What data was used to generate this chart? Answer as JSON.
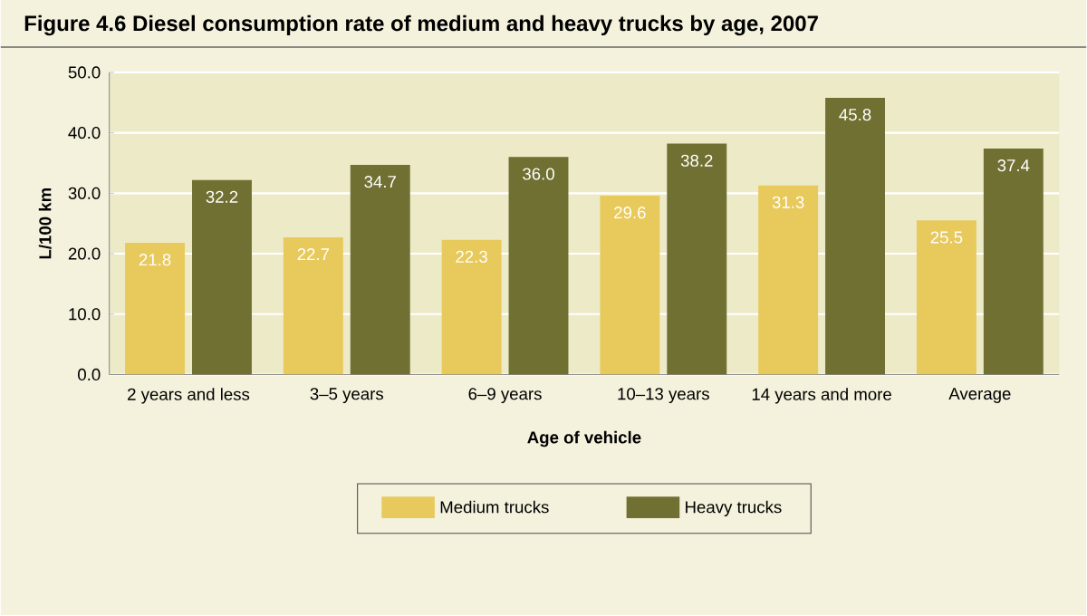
{
  "chart_data": {
    "type": "bar",
    "title": "Figure 4.6  Diesel consumption rate of medium and heavy trucks by age, 2007",
    "xlabel": "Age of vehicle",
    "ylabel": "L/100 km",
    "categories": [
      "2 years and less",
      "3–5 years",
      "6–9 years",
      "10–13 years",
      "14 years and more",
      "Average"
    ],
    "series": [
      {
        "name": "Medium trucks",
        "color": "#e8c95c",
        "values": [
          21.8,
          22.7,
          22.3,
          29.6,
          31.3,
          25.5
        ],
        "value_labels": [
          "21.8",
          "22.7",
          "22.3",
          "29.6",
          "31.3",
          "25.5"
        ]
      },
      {
        "name": "Heavy trucks",
        "color": "#6f7031",
        "values": [
          32.2,
          34.7,
          36.0,
          38.2,
          45.8,
          37.4
        ],
        "value_labels": [
          "32.2",
          "34.7",
          "36.0",
          "38.2",
          "45.8",
          "37.4"
        ]
      }
    ],
    "ylim": [
      0,
      50
    ],
    "yticks": [
      {
        "value": 0,
        "label": "0.0"
      },
      {
        "value": 10,
        "label": "10.0"
      },
      {
        "value": 20,
        "label": "20.0"
      },
      {
        "value": 30,
        "label": "30.0"
      },
      {
        "value": 40,
        "label": "40.0"
      },
      {
        "value": 50,
        "label": "50.0"
      }
    ],
    "grid": "y",
    "legend": "bottom"
  }
}
